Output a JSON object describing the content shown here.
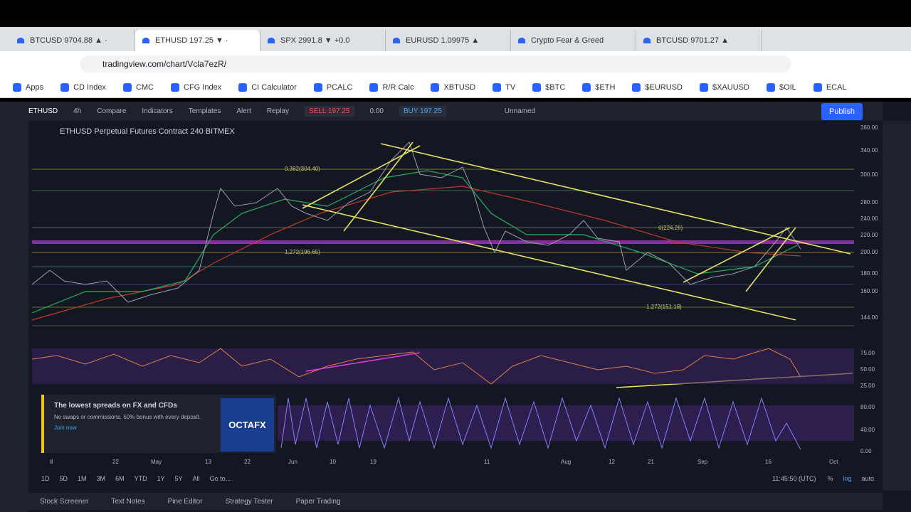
{
  "browser": {
    "tabs": [
      "BTCUSD 9704.88 ▲ ·",
      "ETHUSD 197.25 ▼ ·",
      "SPX 2991.8 ▼ +0.0",
      "EURUSD 1.09975 ▲",
      "Crypto Fear & Greed",
      "BTCUSD 9701.27 ▲"
    ],
    "url": "tradingview.com/chart/Vcla7ezR/",
    "bookmarks": [
      "Apps",
      "CD Index",
      "CMC",
      "CFG Index",
      "CI Calculator",
      "PCALC",
      "R/R Calc",
      "XBTUSD",
      "TV",
      "$BTC",
      "$ETH",
      "$EURUSD",
      "$XAUUSD",
      "$OIL",
      "ECAL"
    ]
  },
  "toolbar": {
    "symbol": "ETHUSD",
    "interval": "4h",
    "items": [
      "Compare",
      "Indicators",
      "Templates",
      "Alert",
      "Replay"
    ],
    "sell": "SELL",
    "sell_price": "197.25",
    "spread": "0.00",
    "buy": "BUY",
    "buy_price": "197.25",
    "layout": "Unnamed",
    "publish": "Publish"
  },
  "chart": {
    "legend": "ETHUSD Perpetual Futures Contract  240  BITMEX",
    "fib_labels": [
      "0.382(304.40)",
      "1.272(196.65)",
      "0(224.26)",
      "1.272(151.18)"
    ],
    "price_axis": [
      "360.00",
      "340.00",
      "300.00",
      "280.00",
      "240.00",
      "220.00",
      "200.00",
      "180.00",
      "160.00",
      "144.00"
    ],
    "rsi_axis": [
      "75.00",
      "50.00",
      "25.00"
    ],
    "stoch_axis": [
      "80.00",
      "40.00",
      "0.00"
    ],
    "time_axis": [
      "8",
      "22",
      "May",
      "13",
      "22",
      "Jun",
      "10",
      "19",
      "11",
      "Aug",
      "12",
      "21",
      "Sep",
      "16",
      "Oct"
    ]
  },
  "ad": {
    "title": "The lowest spreads on FX and CFDs",
    "body": "No swaps or commissions. 50% bonus with every deposit.",
    "cta": "Join now",
    "brand": "OCTAFX"
  },
  "range_bar": [
    "1D",
    "5D",
    "1M",
    "3M",
    "6M",
    "YTD",
    "1Y",
    "5Y",
    "All",
    "Go to..."
  ],
  "clock": "11:45:50 (UTC)",
  "scale_options": [
    "%",
    "log",
    "auto"
  ],
  "bottom_tabs": [
    "Stock Screener",
    "Text Notes",
    "Pine Editor",
    "Strategy Tester",
    "Paper Trading"
  ]
}
